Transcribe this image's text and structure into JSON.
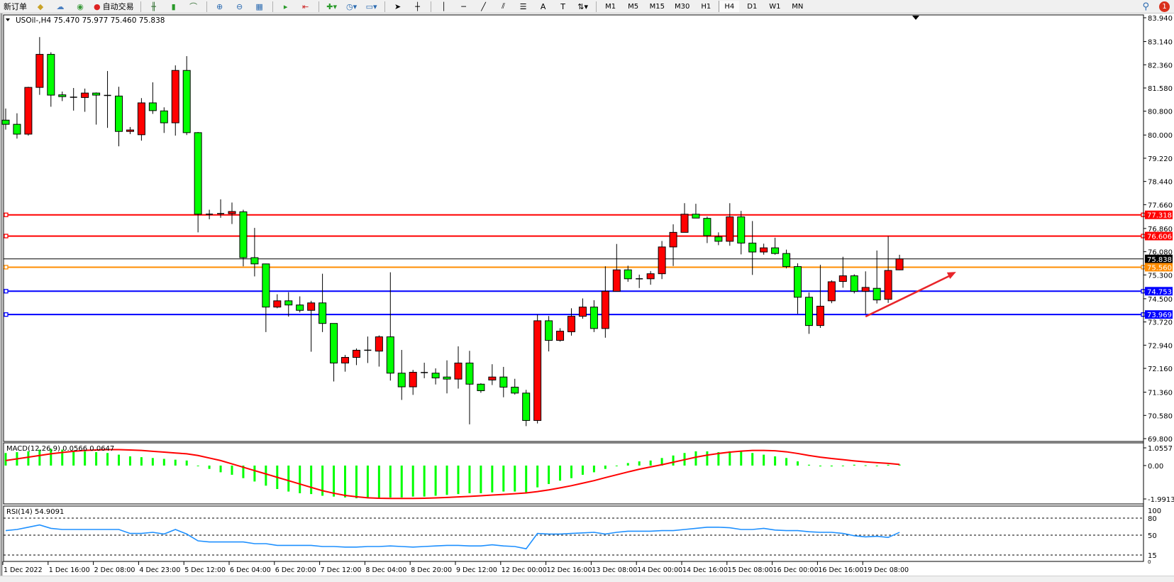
{
  "toolbar": {
    "new_order_label": "新订单",
    "autotrading_label": "自动交易",
    "icons": [
      "new-order-icon",
      "market-watch-icon",
      "data-window-icon",
      "navigator-icon",
      "terminal-icon",
      "autotrading-icon",
      "bar-chart-icon",
      "candlestick-icon",
      "line-chart-icon",
      "zoom-in-icon",
      "zoom-out-icon",
      "tile-windows-icon",
      "auto-scroll-icon",
      "chart-shift-icon",
      "indicators-icon",
      "periods-icon",
      "templates-icon",
      "cursor-icon",
      "crosshair-icon",
      "vertical-line-icon",
      "horizontal-line-icon",
      "trendline-icon",
      "equidistant-channel-icon",
      "fibonacci-icon",
      "text-icon",
      "text-label-icon",
      "arrows-icon"
    ],
    "timeframes": [
      "M1",
      "M5",
      "M15",
      "M30",
      "H1",
      "H4",
      "D1",
      "W1",
      "MN"
    ],
    "active_timeframe": "H4",
    "notification_count": "1"
  },
  "chart": {
    "header": "USOil-,H4  75.470 75.977 75.460 75.838",
    "colors": {
      "bull": "#ff0000",
      "bear": "#00ff00",
      "resistance": "#ff0000",
      "pivot": "#ff8c00",
      "support": "#0000ff",
      "bid": "#000000",
      "trend_arrow": "#e8252a"
    }
  },
  "chart_data": [
    {
      "type": "candlestick",
      "symbol": "USOil-",
      "timeframe": "H4",
      "ylim": [
        69.8,
        83.94
      ],
      "price_ticks": [
        "83.940",
        "83.140",
        "82.360",
        "81.580",
        "80.800",
        "80.000",
        "79.220",
        "78.440",
        "77.660",
        "76.860",
        "76.080",
        "75.300",
        "74.500",
        "73.720",
        "72.940",
        "72.160",
        "71.360",
        "70.580",
        "69.800"
      ],
      "time_labels": [
        "1 Dec 2022",
        "1 Dec 16:00",
        "2 Dec 08:00",
        "4 Dec 23:00",
        "5 Dec 12:00",
        "6 Dec 04:00",
        "6 Dec 20:00",
        "7 Dec 12:00",
        "8 Dec 04:00",
        "8 Dec 20:00",
        "9 Dec 12:00",
        "12 Dec 00:00",
        "12 Dec 16:00",
        "13 Dec 08:00",
        "14 Dec 00:00",
        "14 Dec 16:00",
        "15 Dec 08:00",
        "16 Dec 00:00",
        "16 Dec 16:00",
        "19 Dec 08:00"
      ],
      "ohlc": [
        [
          80.5,
          80.89,
          80.18,
          80.36
        ],
        [
          80.36,
          80.73,
          79.88,
          80.03
        ],
        [
          80.03,
          81.62,
          79.98,
          81.6
        ],
        [
          81.6,
          83.29,
          81.35,
          82.71
        ],
        [
          82.71,
          82.78,
          80.95,
          81.34
        ],
        [
          81.35,
          81.46,
          81.14,
          81.29
        ],
        [
          81.27,
          81.58,
          80.82,
          81.27
        ],
        [
          81.26,
          81.56,
          80.78,
          81.41
        ],
        [
          81.41,
          81.43,
          80.35,
          81.34
        ],
        [
          81.33,
          82.15,
          80.24,
          81.33
        ],
        [
          81.31,
          81.62,
          79.62,
          80.12
        ],
        [
          80.12,
          80.27,
          80.03,
          80.17
        ],
        [
          80.01,
          81.24,
          79.81,
          81.08
        ],
        [
          81.08,
          81.77,
          80.71,
          80.82
        ],
        [
          80.81,
          80.93,
          80.07,
          80.41
        ],
        [
          80.41,
          82.34,
          79.98,
          82.17
        ],
        [
          82.17,
          82.65,
          80.0,
          80.08
        ],
        [
          80.08,
          80.1,
          76.73,
          77.34
        ],
        [
          77.34,
          77.49,
          77.17,
          77.33
        ],
        [
          77.34,
          77.84,
          77.22,
          77.36
        ],
        [
          77.36,
          77.73,
          77.01,
          77.43
        ],
        [
          77.42,
          77.49,
          75.59,
          75.88
        ],
        [
          75.88,
          76.88,
          75.25,
          75.67
        ],
        [
          75.67,
          75.68,
          73.38,
          74.22
        ],
        [
          74.22,
          74.65,
          74.18,
          74.43
        ],
        [
          74.43,
          74.72,
          73.9,
          74.29
        ],
        [
          74.29,
          74.58,
          74.04,
          74.11
        ],
        [
          74.11,
          74.43,
          72.72,
          74.36
        ],
        [
          74.36,
          75.34,
          73.38,
          73.67
        ],
        [
          73.67,
          73.67,
          71.72,
          72.34
        ],
        [
          72.34,
          72.61,
          72.05,
          72.53
        ],
        [
          72.53,
          72.83,
          72.27,
          72.77
        ],
        [
          72.77,
          73.23,
          72.34,
          72.75
        ],
        [
          72.74,
          73.27,
          72.22,
          73.22
        ],
        [
          73.22,
          75.39,
          71.75,
          72.0
        ],
        [
          72.0,
          72.78,
          71.1,
          71.54
        ],
        [
          71.54,
          72.11,
          71.27,
          72.03
        ],
        [
          72.02,
          72.35,
          71.83,
          72.02
        ],
        [
          72.0,
          72.16,
          71.62,
          71.84
        ],
        [
          71.87,
          72.43,
          71.32,
          71.8
        ],
        [
          71.8,
          72.9,
          71.48,
          72.34
        ],
        [
          72.34,
          72.75,
          70.28,
          71.63
        ],
        [
          71.63,
          71.66,
          71.34,
          71.41
        ],
        [
          71.77,
          72.3,
          71.6,
          71.87
        ],
        [
          71.87,
          72.21,
          71.19,
          71.53
        ],
        [
          71.53,
          71.81,
          71.28,
          71.33
        ],
        [
          71.33,
          71.44,
          70.22,
          70.41
        ],
        [
          70.41,
          73.97,
          70.31,
          73.76
        ],
        [
          73.76,
          73.92,
          72.73,
          73.1
        ],
        [
          73.1,
          73.51,
          73.06,
          73.41
        ],
        [
          73.39,
          74.18,
          73.26,
          73.91
        ],
        [
          73.91,
          74.51,
          73.83,
          74.22
        ],
        [
          74.22,
          74.45,
          73.38,
          73.5
        ],
        [
          73.5,
          75.59,
          73.19,
          74.75
        ],
        [
          74.75,
          76.34,
          74.75,
          75.47
        ],
        [
          75.47,
          75.61,
          75.07,
          75.17
        ],
        [
          75.17,
          75.31,
          74.86,
          75.17
        ],
        [
          75.17,
          75.43,
          74.97,
          75.34
        ],
        [
          75.34,
          76.44,
          75.16,
          76.24
        ],
        [
          76.24,
          77.0,
          75.6,
          76.73
        ],
        [
          76.73,
          77.71,
          76.73,
          77.34
        ],
        [
          77.34,
          77.69,
          77.21,
          77.21
        ],
        [
          77.2,
          77.26,
          76.37,
          76.62
        ],
        [
          76.58,
          76.73,
          76.3,
          76.43
        ],
        [
          76.43,
          77.71,
          76.28,
          77.25
        ],
        [
          77.25,
          77.45,
          75.99,
          76.37
        ],
        [
          76.37,
          77.11,
          75.3,
          76.07
        ],
        [
          76.07,
          76.35,
          75.98,
          76.21
        ],
        [
          76.21,
          76.55,
          75.98,
          76.02
        ],
        [
          76.02,
          76.15,
          75.52,
          75.58
        ],
        [
          75.58,
          75.69,
          73.99,
          74.55
        ],
        [
          74.55,
          74.71,
          73.32,
          73.6
        ],
        [
          73.6,
          75.64,
          73.52,
          74.25
        ],
        [
          74.43,
          75.12,
          74.35,
          75.07
        ],
        [
          75.08,
          75.91,
          74.87,
          75.27
        ],
        [
          75.27,
          75.32,
          74.68,
          74.75
        ],
        [
          74.75,
          75.42,
          73.99,
          74.88
        ],
        [
          74.85,
          76.12,
          74.34,
          74.46
        ],
        [
          74.48,
          76.6,
          74.36,
          75.45
        ],
        [
          75.47,
          75.977,
          75.46,
          75.838
        ]
      ],
      "horizontal_lines": [
        {
          "price": 77.318,
          "label": "77.318",
          "color": "#ff0000"
        },
        {
          "price": 76.606,
          "label": "76.606",
          "color": "#ff0000"
        },
        {
          "price": 75.838,
          "label": "75.838",
          "color": "#000000",
          "kind": "bid"
        },
        {
          "price": 75.56,
          "label": "75.560",
          "color": "#ff8c00"
        },
        {
          "price": 74.753,
          "label": "74.753",
          "color": "#0000ff"
        },
        {
          "price": 73.969,
          "label": "73.969",
          "color": "#0000ff"
        }
      ],
      "trend_arrow": {
        "from": {
          "candle": 76,
          "price": 73.9
        },
        "to": {
          "candle": 84,
          "price": 75.4
        },
        "direction": "up"
      }
    },
    {
      "type": "bar+line",
      "indicator": "MACD",
      "label": "MACD(12,26,9) 0.0566 0.0647",
      "ylim": [
        -1.9913,
        1.0557
      ],
      "ticks": [
        "1.0557",
        "0.00",
        "-1.9913"
      ],
      "histogram": [
        0.75,
        0.8,
        0.85,
        0.95,
        1.0,
        0.95,
        0.9,
        0.85,
        0.8,
        0.75,
        0.65,
        0.55,
        0.5,
        0.45,
        0.4,
        0.35,
        0.3,
        0.0,
        -0.2,
        -0.4,
        -0.55,
        -0.75,
        -0.95,
        -1.2,
        -1.4,
        -1.55,
        -1.65,
        -1.7,
        -1.8,
        -1.85,
        -1.9,
        -1.95,
        -1.95,
        -1.95,
        -1.9,
        -1.9,
        -1.85,
        -1.85,
        -1.8,
        -1.75,
        -1.7,
        -1.65,
        -1.65,
        -1.6,
        -1.55,
        -1.55,
        -1.6,
        -1.3,
        -1.1,
        -0.9,
        -0.75,
        -0.55,
        -0.4,
        -0.2,
        0.0,
        0.15,
        0.25,
        0.3,
        0.45,
        0.6,
        0.75,
        0.85,
        0.85,
        0.8,
        0.85,
        0.85,
        0.75,
        0.65,
        0.55,
        0.45,
        0.25,
        0.05,
        -0.05,
        -0.05,
        0.0,
        0.05,
        0.02,
        -0.02,
        0.05,
        0.0566
      ],
      "signal": [
        0.3,
        0.4,
        0.5,
        0.6,
        0.7,
        0.78,
        0.85,
        0.9,
        0.93,
        0.95,
        0.95,
        0.93,
        0.9,
        0.85,
        0.8,
        0.75,
        0.7,
        0.6,
        0.45,
        0.3,
        0.1,
        -0.1,
        -0.3,
        -0.5,
        -0.7,
        -0.9,
        -1.1,
        -1.3,
        -1.5,
        -1.65,
        -1.78,
        -1.86,
        -1.92,
        -1.95,
        -1.96,
        -1.96,
        -1.96,
        -1.95,
        -1.93,
        -1.9,
        -1.87,
        -1.84,
        -1.8,
        -1.76,
        -1.72,
        -1.68,
        -1.63,
        -1.55,
        -1.45,
        -1.33,
        -1.2,
        -1.05,
        -0.9,
        -0.72,
        -0.55,
        -0.38,
        -0.22,
        -0.08,
        0.05,
        0.2,
        0.35,
        0.5,
        0.62,
        0.72,
        0.8,
        0.86,
        0.9,
        0.9,
        0.88,
        0.82,
        0.72,
        0.6,
        0.5,
        0.42,
        0.35,
        0.28,
        0.22,
        0.17,
        0.13,
        0.0647
      ],
      "colors": {
        "histogram": "#00ff00",
        "signal": "#ff0000"
      }
    },
    {
      "type": "line",
      "indicator": "RSI",
      "label": "RSI(14) 54.9091",
      "ylim": [
        0,
        100
      ],
      "ticks": [
        "100",
        "80",
        "50",
        "15",
        "0"
      ],
      "levels": [
        80,
        50,
        15
      ],
      "values": [
        58,
        60,
        64,
        68,
        62,
        60,
        60,
        60,
        60,
        60,
        60,
        53,
        53,
        55,
        52,
        60,
        52,
        40,
        38,
        38,
        38,
        38,
        35,
        35,
        32,
        32,
        32,
        32,
        30,
        30,
        29,
        29,
        30,
        30,
        31,
        30,
        29,
        30,
        31,
        32,
        32,
        31,
        31,
        33,
        31,
        30,
        26,
        53,
        52,
        52,
        53,
        54,
        55,
        52,
        55,
        57,
        57,
        57,
        58,
        58,
        60,
        62,
        64,
        64,
        63,
        60,
        60,
        62,
        59,
        58,
        58,
        56,
        55,
        55,
        53,
        49,
        47,
        48,
        46,
        54.9091
      ],
      "color": "#1e90ff"
    }
  ]
}
